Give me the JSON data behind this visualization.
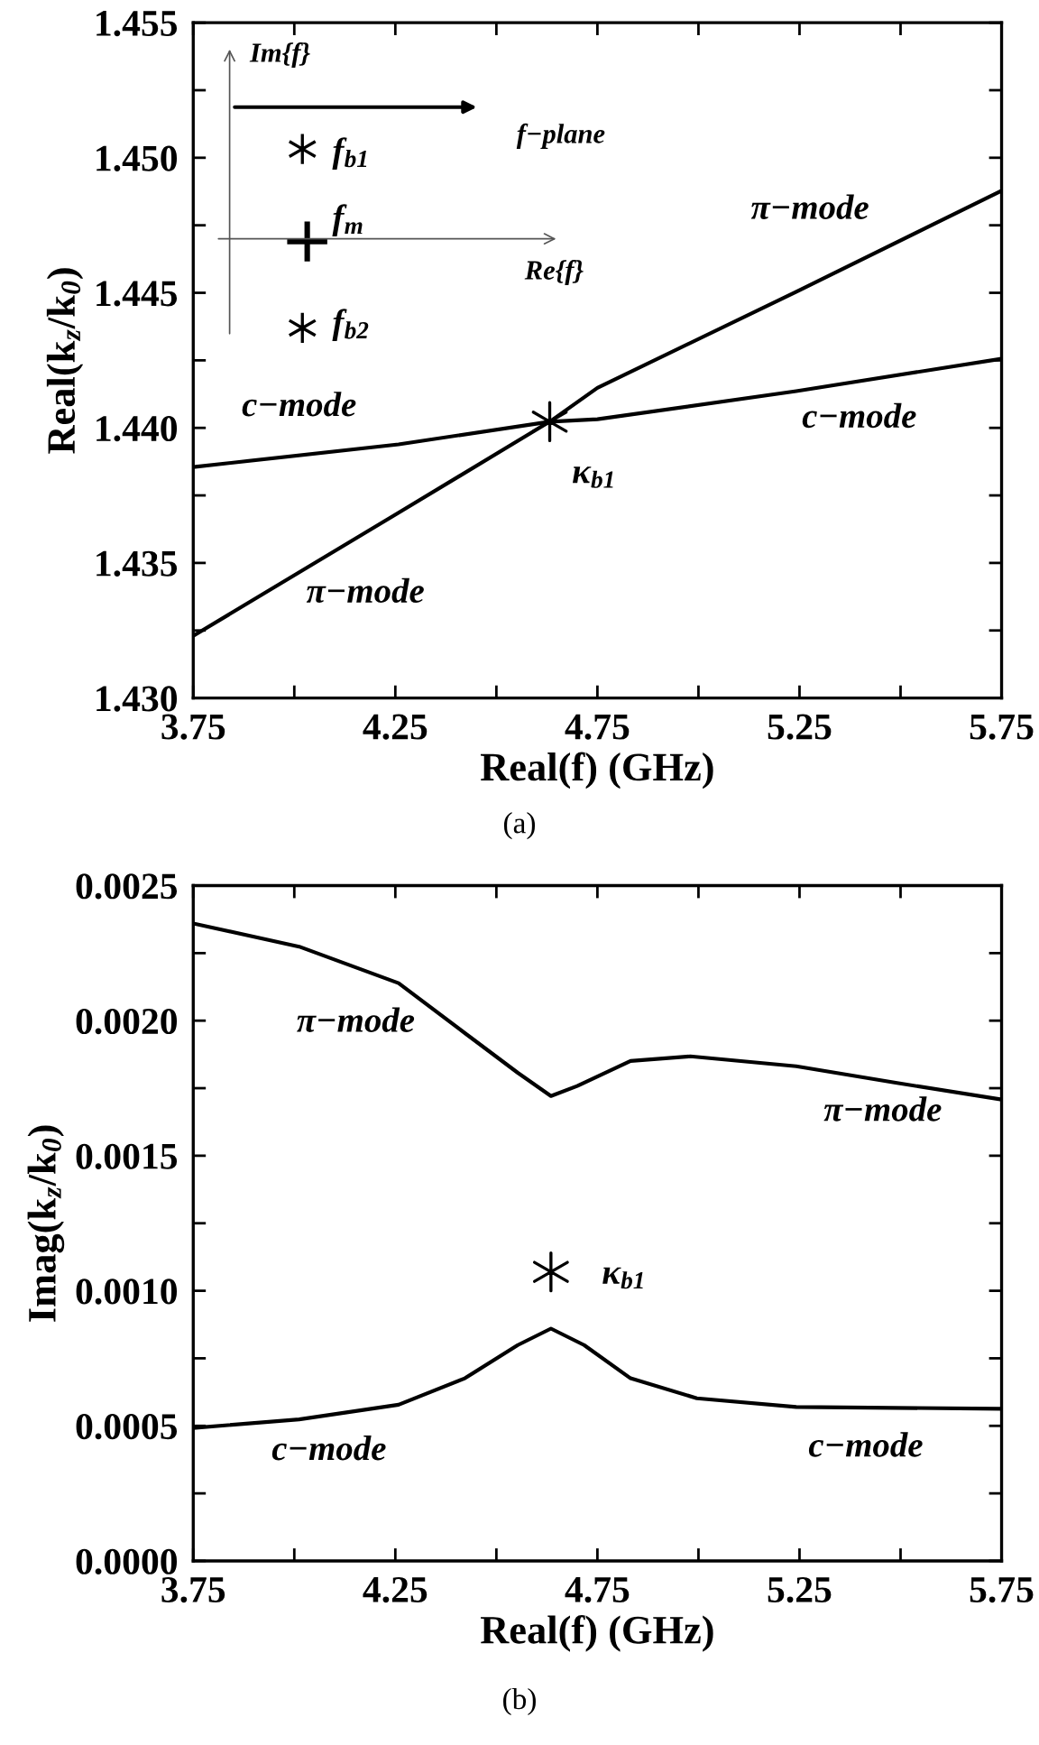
{
  "chart_data": [
    {
      "type": "line",
      "xlabel": "Real(f) (GHz)",
      "ylabel": "Real(k$_{z}$/k$_{0}$)",
      "subtitle": "(a)",
      "xlim": [
        3.75,
        5.75
      ],
      "xticks": [
        3.75,
        {
          "value": 4.0,
          "label": null
        },
        4.25,
        {
          "value": 4.5,
          "label": null
        },
        4.75,
        {
          "value": 5.0,
          "label": null
        },
        5.25,
        {
          "value": 5.5,
          "label": null
        },
        5.75
      ],
      "ylim": [
        1.43,
        1.455
      ],
      "yticks": [
        {
          "value": 1.43,
          "label": "1.430"
        },
        {
          "value": 1.4325,
          "label": null
        },
        1.435,
        {
          "value": 1.4375,
          "label": null
        },
        {
          "value": 1.44,
          "label": "1.440"
        },
        {
          "value": 1.4425,
          "label": null
        },
        1.445,
        {
          "value": 1.4475,
          "label": null
        },
        {
          "value": 1.45,
          "label": "1.450"
        },
        {
          "value": 1.4525,
          "label": null
        },
        1.455
      ],
      "grid": false,
      "series": [
        {
          "color": "#000000",
          "x": [
            3.75,
            4.258,
            4.632,
            4.75,
            5.242,
            5.75
          ],
          "values": [
            1.4323,
            1.43686,
            1.44023,
            1.44148,
            1.44504,
            1.44878
          ]
        },
        {
          "color": "#000000",
          "x": [
            3.75,
            4.258,
            4.632,
            4.75,
            5.242,
            5.75
          ],
          "values": [
            1.43855,
            1.43939,
            1.44023,
            1.44032,
            1.44136,
            1.44256
          ]
        },
        {
          "type": "scatter",
          "marker": "cross",
          "color": "#000000",
          "x": [
            4.632
          ],
          "values": [
            1.44023
          ]
        }
      ],
      "annotations": [
        "c−mode",
        "c−mode",
        "π−mode",
        "π−mode",
        "κ$_{b1}$",
        "Im{f}",
        "f−plane",
        "Re{f}",
        "f$_{b1}$",
        "f$_{m}$",
        "f$_{b2}$"
      ]
    },
    {
      "type": "line",
      "xlabel": "Real(f) (GHz)",
      "ylabel": "Imag(k$_{z}$/k$_{0}$)",
      "subtitle": "(b)",
      "xlim": [
        3.75,
        5.75
      ],
      "xticks": [
        3.75,
        {
          "value": 4.0,
          "label": null
        },
        4.25,
        {
          "value": 4.5,
          "label": null
        },
        4.75,
        {
          "value": 5.0,
          "label": null
        },
        5.25,
        {
          "value": 5.5,
          "label": null
        },
        5.75
      ],
      "ylim": [
        0,
        0.0025
      ],
      "yticks": [
        {
          "value": 0,
          "label": "0.0000"
        },
        {
          "value": 0.00025,
          "label": null
        },
        {
          "value": 0.0005,
          "label": "0.0005"
        },
        {
          "value": 0.00075,
          "label": null
        },
        {
          "value": 0.001,
          "label": "0.0010"
        },
        {
          "value": 0.00125,
          "label": null
        },
        {
          "value": 0.0015,
          "label": "0.0015"
        },
        {
          "value": 0.00175,
          "label": null
        },
        {
          "value": 0.002,
          "label": "0.0020"
        },
        {
          "value": 0.00225,
          "label": null
        },
        {
          "value": 0.0025,
          "label": "0.0025"
        }
      ],
      "grid": false,
      "series": [
        {
          "color": "#000000",
          "x": [
            3.75,
            4.012,
            4.258,
            4.422,
            4.553,
            4.635,
            4.7,
            4.832,
            4.98,
            5.242,
            5.488,
            5.75
          ],
          "values": [
            0.00236,
            0.002274,
            0.002139,
            0.001954,
            0.001807,
            0.001721,
            0.001758,
            0.001851,
            0.001868,
            0.001831,
            0.00177,
            0.001708
          ]
        },
        {
          "color": "#000000",
          "x": [
            3.75,
            4.012,
            4.258,
            4.422,
            4.553,
            4.635,
            4.717,
            4.832,
            4.996,
            5.242,
            5.75
          ],
          "values": [
            0.000492,
            0.000524,
            0.000578,
            0.000676,
            0.000799,
            0.00086,
            0.000799,
            0.000676,
            0.000602,
            0.00057,
            0.000563
          ]
        },
        {
          "type": "scatter",
          "marker": "cross",
          "color": "#000000",
          "x": [
            4.635
          ],
          "values": [
            0.00107
          ]
        }
      ],
      "annotations": [
        "π−mode",
        "π−mode",
        "c−mode",
        "c−mode",
        "κ$_{b1}$"
      ]
    }
  ]
}
